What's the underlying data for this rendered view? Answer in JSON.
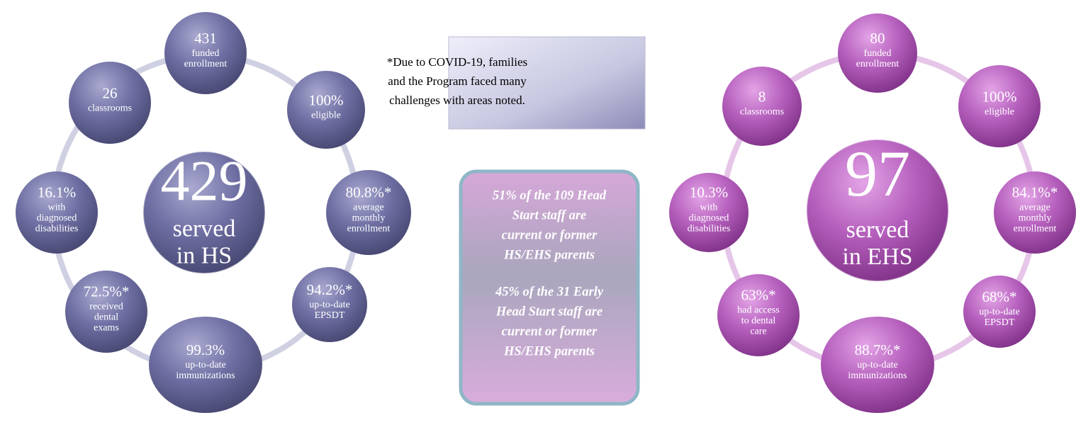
{
  "left": {
    "center": {
      "number": "429",
      "lines": [
        "served",
        "in HS"
      ]
    },
    "items": [
      {
        "value": "431",
        "lines": [
          "funded",
          "enrollment"
        ]
      },
      {
        "value": "100%",
        "lines": [
          "eligible"
        ]
      },
      {
        "value": "80.8%*",
        "lines": [
          "average",
          "monthly",
          "enrollment"
        ]
      },
      {
        "value": "94.2%*",
        "lines": [
          "up-to-date",
          "EPSDT"
        ]
      },
      {
        "value": "99.3%",
        "lines": [
          "up-to-date",
          "immunizations"
        ]
      },
      {
        "value": "72.5%*",
        "lines": [
          "received",
          "dental",
          "exams"
        ]
      },
      {
        "value": "16.1%",
        "lines": [
          "with",
          "diagnosed",
          "disabilities"
        ]
      },
      {
        "value": "26",
        "lines": [
          "classrooms"
        ]
      }
    ]
  },
  "right": {
    "center": {
      "number": "97",
      "lines": [
        "served",
        "in EHS"
      ]
    },
    "items": [
      {
        "value": "80",
        "lines": [
          "funded",
          "enrollment"
        ]
      },
      {
        "value": "100%",
        "lines": [
          "eligible"
        ]
      },
      {
        "value": "84.1%*",
        "lines": [
          "average",
          "monthly",
          "enrollment"
        ]
      },
      {
        "value": "68%*",
        "lines": [
          "up-to-date",
          "EPSDT"
        ]
      },
      {
        "value": "88.7%*",
        "lines": [
          "up-to-date",
          "immunizations"
        ]
      },
      {
        "value": "63%*",
        "lines": [
          "had access",
          "to dental",
          "care"
        ]
      },
      {
        "value": "10.3%",
        "lines": [
          "with",
          "diagnosed",
          "disabilities"
        ]
      },
      {
        "value": "8",
        "lines": [
          "classrooms"
        ]
      }
    ]
  },
  "note": {
    "lines": [
      "*Due to COVID-19, families",
      "and the Program faced many",
      "challenges with areas noted."
    ]
  },
  "staff": {
    "paragraphs": [
      [
        "51% of the 109 Head",
        "Start staff are",
        "current or former",
        "HS/EHS parents"
      ],
      [
        "45% of the 31 Early",
        "Head Start staff are",
        "current or former",
        "HS/EHS parents"
      ]
    ]
  }
}
